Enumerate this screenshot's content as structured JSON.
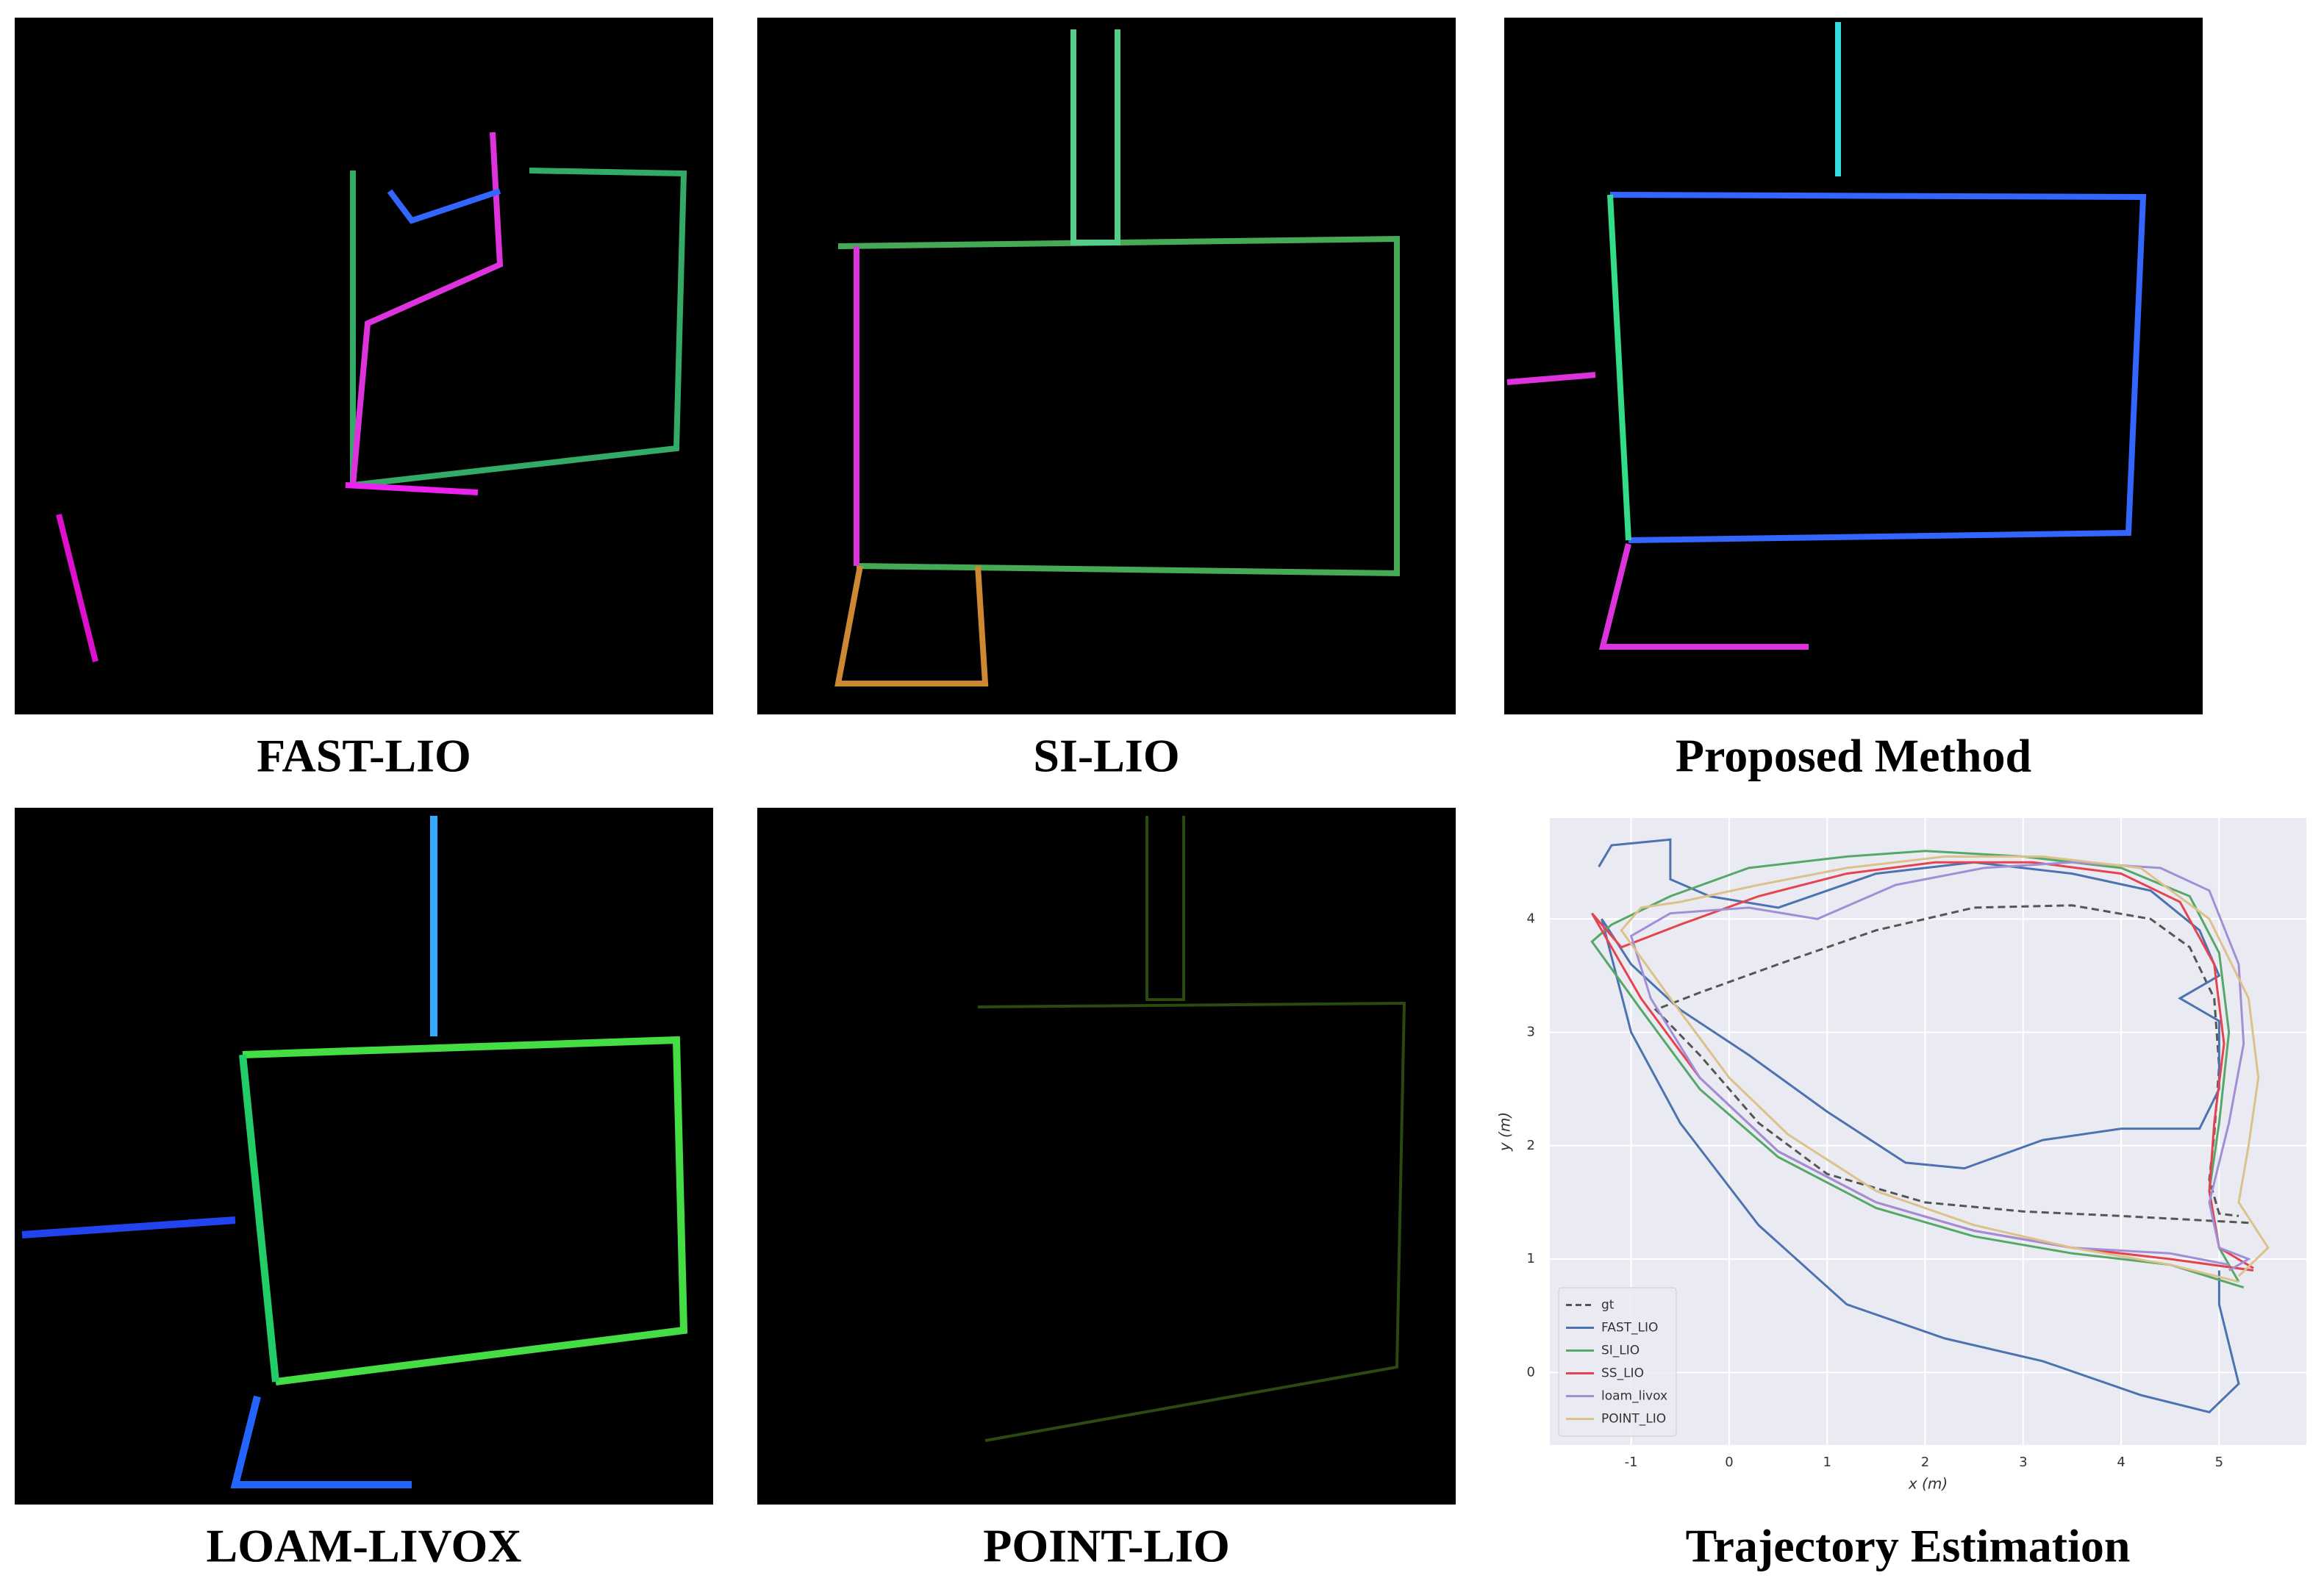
{
  "panels": [
    {
      "caption": "FAST-LIO"
    },
    {
      "caption": "SI-LIO"
    },
    {
      "caption": "Proposed Method"
    },
    {
      "caption": "LOAM-LIVOX"
    },
    {
      "caption": "POINT-LIO"
    }
  ],
  "chart_data": {
    "type": "line",
    "title": "Trajectory Estimation",
    "xlabel": "x (m)",
    "ylabel": "y (m)",
    "xlim": [
      -1.83,
      5.89
    ],
    "ylim": [
      -0.64,
      4.89
    ],
    "xticks": [
      -1,
      0,
      1,
      2,
      3,
      4,
      5
    ],
    "yticks": [
      0,
      1,
      2,
      3,
      4
    ],
    "grid": true,
    "legend": "lower left",
    "series": [
      {
        "name": "gt",
        "color": "#555555",
        "linestyle": "dashed",
        "x": [
          5.3,
          4,
          3,
          2,
          1,
          0.3,
          -0.3,
          -0.75,
          -0.3,
          0.5,
          1.5,
          2.5,
          3.5,
          4.3,
          4.7,
          4.95,
          5.0,
          4.95,
          4.9,
          5.0,
          5.2
        ],
        "values": [
          1.32,
          1.38,
          1.42,
          1.5,
          1.75,
          2.2,
          2.8,
          3.2,
          3.35,
          3.6,
          3.9,
          4.1,
          4.12,
          4.0,
          3.75,
          3.3,
          2.7,
          2.1,
          1.7,
          1.4,
          1.38
        ]
      },
      {
        "name": "FAST_LIO",
        "color": "#4c72b0",
        "linestyle": "solid",
        "x": [
          -1.33,
          -1.2,
          -0.6,
          -0.6,
          -0.2,
          0.5,
          1.5,
          2.5,
          3.5,
          4.3,
          4.8,
          5.0,
          4.6,
          5.0,
          5.0,
          4.8,
          4.0,
          3.2,
          2.4,
          1.8,
          1.0,
          0.2,
          -0.5,
          -1.0,
          -1.3,
          -1.0,
          -0.5,
          0.3,
          1.2,
          2.2,
          3.2,
          4.2,
          4.9,
          5.2,
          5.0,
          5.0
        ],
        "values": [
          4.46,
          4.65,
          4.7,
          4.35,
          4.2,
          4.1,
          4.4,
          4.5,
          4.4,
          4.25,
          3.9,
          3.5,
          3.3,
          3.1,
          2.5,
          2.15,
          2.15,
          2.05,
          1.8,
          1.85,
          2.3,
          2.8,
          3.2,
          3.6,
          4.0,
          3.0,
          2.2,
          1.3,
          0.6,
          0.3,
          0.1,
          -0.2,
          -0.35,
          -0.1,
          0.6,
          0.9
        ]
      },
      {
        "name": "SI_LIO",
        "color": "#55a868",
        "linestyle": "solid",
        "x": [
          5.25,
          4.5,
          3.5,
          2.5,
          1.5,
          0.5,
          -0.3,
          -0.9,
          -1.4,
          -1.2,
          -0.6,
          0.2,
          1.2,
          2.0,
          3.0,
          4.0,
          4.7,
          5.0,
          5.1,
          5.0,
          4.9,
          5.0,
          5.2
        ],
        "values": [
          0.75,
          0.95,
          1.05,
          1.2,
          1.45,
          1.9,
          2.5,
          3.2,
          3.8,
          3.95,
          4.2,
          4.45,
          4.55,
          4.6,
          4.55,
          4.45,
          4.2,
          3.7,
          3.0,
          2.2,
          1.6,
          1.1,
          0.8
        ]
      },
      {
        "name": "SS_LIO",
        "color": "#e5444e",
        "linestyle": "solid",
        "x": [
          5.35,
          4.5,
          3.5,
          2.5,
          1.5,
          0.5,
          -0.3,
          -0.9,
          -1.4,
          -1.1,
          -0.5,
          0.3,
          1.2,
          2.1,
          3.1,
          4.0,
          4.6,
          4.95,
          5.05,
          4.95,
          4.9,
          5.0,
          5.35
        ],
        "values": [
          0.9,
          1.0,
          1.1,
          1.25,
          1.5,
          1.95,
          2.6,
          3.3,
          4.05,
          3.75,
          3.95,
          4.2,
          4.4,
          4.5,
          4.5,
          4.4,
          4.15,
          3.6,
          2.9,
          2.2,
          1.6,
          1.1,
          0.92
        ]
      },
      {
        "name": "loam_livox",
        "color": "#a08fd6",
        "linestyle": "solid",
        "x": [
          5.1,
          4.5,
          3.5,
          2.5,
          1.5,
          0.5,
          -0.3,
          -0.8,
          -1.0,
          -0.6,
          0.2,
          0.9,
          1.7,
          2.6,
          3.5,
          4.4,
          4.9,
          5.2,
          5.25,
          5.1,
          4.9,
          5.0,
          5.3,
          5.1
        ],
        "values": [
          0.95,
          1.05,
          1.1,
          1.25,
          1.5,
          1.95,
          2.6,
          3.3,
          3.85,
          4.05,
          4.1,
          4.0,
          4.3,
          4.45,
          4.5,
          4.45,
          4.25,
          3.6,
          2.9,
          2.2,
          1.5,
          1.1,
          1.0,
          0.9
        ]
      },
      {
        "name": "POINT_LIO",
        "color": "#dcc28a",
        "linestyle": "solid",
        "x": [
          5.2,
          4.5,
          3.5,
          2.5,
          1.5,
          0.6,
          0.0,
          -0.6,
          -1.1,
          -0.9,
          -0.5,
          0.3,
          1.2,
          2.2,
          3.2,
          4.2,
          4.9,
          5.3,
          5.4,
          5.3,
          5.2,
          5.5,
          5.2
        ],
        "values": [
          0.8,
          0.95,
          1.1,
          1.3,
          1.6,
          2.1,
          2.6,
          3.3,
          3.9,
          4.1,
          4.15,
          4.3,
          4.45,
          4.55,
          4.55,
          4.45,
          4.0,
          3.3,
          2.6,
          2.0,
          1.5,
          1.1,
          0.85
        ]
      }
    ]
  }
}
